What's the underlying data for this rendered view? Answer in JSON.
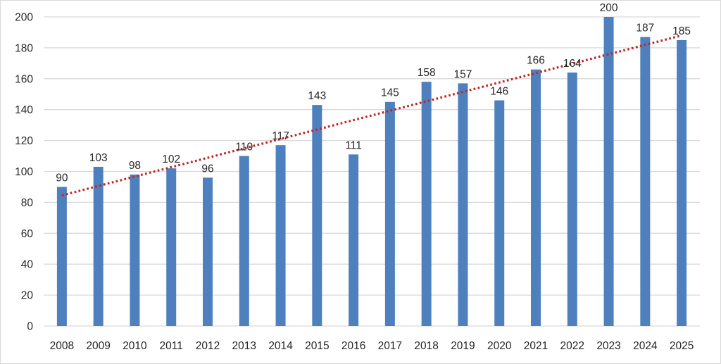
{
  "chart_data": {
    "type": "bar",
    "title": "",
    "xlabel": "",
    "ylabel": "",
    "categories": [
      "2008",
      "2009",
      "2010",
      "2011",
      "2012",
      "2013",
      "2014",
      "2015",
      "2016",
      "2017",
      "2018",
      "2019",
      "2020",
      "2021",
      "2022",
      "2023",
      "2024",
      "2025"
    ],
    "values": [
      90,
      103,
      98,
      102,
      96,
      110,
      117,
      143,
      111,
      145,
      158,
      157,
      146,
      166,
      164,
      200,
      187,
      185
    ],
    "data_labels": [
      "90",
      "103",
      "98",
      "102",
      "96",
      "110",
      "117",
      "143",
      "111",
      "145",
      "158",
      "157",
      "146",
      "166",
      "164",
      "200",
      "187",
      "185"
    ],
    "ylim": [
      0,
      200
    ],
    "ytick_step": 20,
    "ytick_labels": [
      "0",
      "20",
      "40",
      "60",
      "80",
      "100",
      "120",
      "140",
      "160",
      "180",
      "200"
    ],
    "grid": true,
    "legend": false,
    "colors": {
      "bar": "#4e80bd",
      "trendline": "#c32626",
      "gridline": "#d9d9d9",
      "axis_line": "#d9d9d9",
      "label_text": "#262626",
      "background": "#ffffff",
      "frame_border": "#d9d9d9"
    },
    "trendline": {
      "type": "linear",
      "style": "dotted",
      "start_value": 84.5,
      "end_value": 188
    }
  }
}
